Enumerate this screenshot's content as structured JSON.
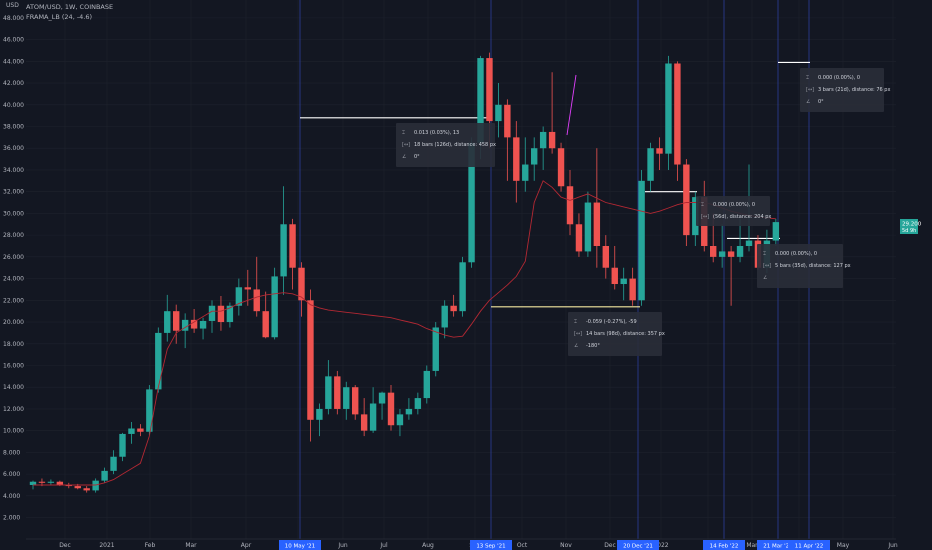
{
  "header": {
    "currency": "USD",
    "symbol": "ATOM/USD, 1W, COINBASE",
    "indicator": "FRAMA_LB (24, -4.6)"
  },
  "price_badge": {
    "price": "29.200",
    "countdown": "5d 9h"
  },
  "colors": {
    "up": "#26a69a",
    "down": "#ef5350",
    "frama": "#b22833",
    "background": "#131722",
    "grid": "#1e222d",
    "vline": "#2a3a8c",
    "label_bg": "#2962ff"
  },
  "chart_data": {
    "type": "candlestick",
    "timeframe": "1W",
    "ylim": [
      0,
      50
    ],
    "yticks": [
      "2.000",
      "4.000",
      "6.000",
      "8.000",
      "10.000",
      "12.000",
      "14.000",
      "16.000",
      "18.000",
      "20.000",
      "22.000",
      "24.000",
      "26.000",
      "28.000",
      "30.000",
      "32.000",
      "34.000",
      "36.000",
      "38.000",
      "40.000",
      "42.000",
      "44.000",
      "46.000",
      "48.000"
    ],
    "month_labels": [
      "Dec",
      "2021",
      "Feb",
      "Mar",
      "Apr",
      "May",
      "Jun",
      "Jul",
      "Aug",
      "Sep",
      "Oct",
      "Nov",
      "Dec",
      "2022",
      "Feb",
      "Mar",
      "Apr",
      "May",
      "Jun"
    ],
    "candles": [
      [
        5.0,
        5.4,
        4.6,
        5.3
      ],
      [
        5.3,
        5.6,
        4.9,
        5.2
      ],
      [
        5.2,
        5.5,
        5.0,
        5.3
      ],
      [
        5.3,
        5.4,
        4.9,
        5.0
      ],
      [
        5.0,
        5.2,
        4.7,
        4.9
      ],
      [
        4.9,
        5.1,
        4.6,
        4.7
      ],
      [
        4.7,
        4.9,
        4.3,
        4.5
      ],
      [
        4.5,
        5.6,
        4.3,
        5.4
      ],
      [
        5.4,
        6.6,
        5.2,
        6.3
      ],
      [
        6.3,
        8.2,
        6.0,
        7.6
      ],
      [
        7.6,
        9.8,
        7.2,
        9.7
      ],
      [
        9.7,
        10.8,
        8.8,
        10.2
      ],
      [
        10.2,
        10.6,
        9.5,
        9.9
      ],
      [
        9.9,
        14.2,
        9.6,
        13.8
      ],
      [
        13.8,
        19.5,
        13.5,
        19.0
      ],
      [
        19.0,
        22.5,
        18.2,
        21.0
      ],
      [
        21.0,
        21.6,
        18.0,
        19.2
      ],
      [
        19.2,
        20.8,
        17.6,
        20.2
      ],
      [
        20.2,
        21.2,
        19.0,
        19.4
      ],
      [
        19.4,
        20.4,
        18.4,
        20.1
      ],
      [
        20.1,
        22.0,
        19.0,
        21.5
      ],
      [
        21.5,
        22.4,
        19.2,
        20.0
      ],
      [
        20.0,
        21.8,
        19.5,
        21.5
      ],
      [
        21.5,
        24.0,
        20.6,
        23.2
      ],
      [
        23.2,
        24.8,
        21.5,
        23.0
      ],
      [
        23.0,
        26.0,
        20.5,
        21.0
      ],
      [
        21.0,
        22.8,
        18.5,
        18.6
      ],
      [
        18.6,
        25.0,
        18.4,
        24.2
      ],
      [
        24.2,
        32.5,
        22.5,
        29.0
      ],
      [
        29.0,
        29.5,
        23.0,
        25.0
      ],
      [
        25.0,
        25.5,
        20.5,
        22.0
      ],
      [
        22.0,
        23.0,
        9.0,
        11.0
      ],
      [
        11.0,
        12.5,
        9.5,
        12.0
      ],
      [
        12.0,
        16.5,
        11.5,
        15.0
      ],
      [
        15.0,
        15.5,
        11.5,
        12.0
      ],
      [
        12.0,
        14.5,
        11.0,
        14.0
      ],
      [
        14.0,
        14.2,
        11.0,
        11.5
      ],
      [
        11.5,
        13.0,
        9.5,
        10.0
      ],
      [
        10.0,
        14.0,
        9.8,
        12.5
      ],
      [
        12.5,
        13.6,
        11.0,
        13.5
      ],
      [
        13.5,
        14.2,
        10.0,
        10.5
      ],
      [
        10.5,
        12.0,
        9.5,
        11.5
      ],
      [
        11.5,
        13.0,
        11.0,
        12.0
      ],
      [
        12.0,
        13.5,
        11.5,
        13.0
      ],
      [
        13.0,
        16.0,
        12.5,
        15.5
      ],
      [
        15.5,
        20.0,
        15.0,
        19.5
      ],
      [
        19.5,
        22.0,
        18.5,
        21.5
      ],
      [
        21.5,
        22.5,
        20.5,
        21.0
      ],
      [
        21.0,
        26.0,
        20.5,
        25.5
      ],
      [
        25.5,
        37.0,
        25.0,
        36.5
      ],
      [
        36.5,
        44.5,
        35.0,
        44.3
      ],
      [
        44.3,
        44.8,
        36.0,
        38.5
      ],
      [
        38.5,
        42.0,
        37.0,
        40.0
      ],
      [
        40.0,
        40.5,
        33.0,
        37.0
      ],
      [
        37.0,
        38.5,
        31.0,
        33.0
      ],
      [
        33.0,
        37.0,
        32.0,
        34.5
      ],
      [
        34.5,
        37.0,
        33.0,
        36.0
      ],
      [
        36.0,
        38.0,
        34.0,
        37.5
      ],
      [
        37.5,
        43.0,
        35.5,
        36.0
      ],
      [
        36.0,
        36.5,
        32.0,
        32.5
      ],
      [
        32.5,
        34.0,
        28.0,
        29.0
      ],
      [
        29.0,
        30.0,
        26.0,
        26.5
      ],
      [
        26.5,
        32.0,
        26.0,
        31.0
      ],
      [
        31.0,
        36.0,
        25.0,
        27.0
      ],
      [
        27.0,
        28.0,
        24.0,
        25.0
      ],
      [
        25.0,
        27.0,
        23.0,
        23.5
      ],
      [
        23.5,
        25.0,
        22.0,
        24.0
      ],
      [
        24.0,
        25.0,
        21.5,
        22.0
      ],
      [
        22.0,
        34.0,
        21.5,
        33.0
      ],
      [
        33.0,
        36.5,
        32.0,
        36.0
      ],
      [
        36.0,
        37.0,
        34.0,
        35.5
      ],
      [
        35.5,
        44.5,
        34.0,
        43.8
      ],
      [
        43.8,
        44.0,
        33.0,
        34.5
      ],
      [
        34.5,
        35.0,
        27.0,
        28.0
      ],
      [
        28.0,
        32.0,
        27.0,
        31.5
      ],
      [
        31.5,
        33.0,
        26.5,
        27.0
      ],
      [
        27.0,
        30.0,
        25.5,
        26.0
      ],
      [
        26.0,
        29.0,
        25.0,
        26.5
      ],
      [
        26.5,
        27.0,
        21.5,
        26.0
      ],
      [
        26.0,
        29.5,
        25.5,
        27.0
      ],
      [
        27.0,
        34.5,
        26.5,
        27.5
      ],
      [
        27.5,
        28.0,
        24.8,
        25.0
      ],
      [
        25.0,
        28.5,
        24.5,
        27.5
      ],
      [
        27.5,
        29.5,
        27.0,
        29.2
      ]
    ],
    "frama": [
      5.0,
      5.0,
      5.0,
      5.0,
      5.0,
      5.0,
      5.0,
      5.0,
      5.2,
      5.5,
      6.0,
      6.5,
      7.0,
      9.5,
      14.0,
      17.5,
      19.0,
      19.5,
      20.0,
      20.5,
      21.0,
      21.0,
      21.3,
      21.7,
      22.0,
      22.3,
      22.5,
      22.6,
      22.7,
      22.6,
      22.3,
      21.6,
      21.3,
      21.1,
      21.0,
      20.9,
      20.8,
      20.7,
      20.6,
      20.5,
      20.4,
      20.2,
      20.0,
      19.8,
      19.4,
      19.1,
      18.8,
      18.6,
      18.7,
      19.8,
      21.0,
      22.0,
      22.7,
      23.4,
      24.2,
      25.6,
      31.0,
      33.0,
      32.4,
      31.5,
      31.2,
      31.5,
      31.8,
      31.4,
      31.0,
      30.8,
      30.6,
      30.4,
      30.2,
      30.0,
      30.2,
      30.5,
      30.8,
      31.0,
      31.0,
      31.0,
      30.8,
      30.5,
      30.2,
      30.0,
      29.8,
      29.7,
      29.6,
      29.5
    ]
  },
  "time_labels": [
    "10 May '21",
    "13 Sep '21",
    "20 Dec '21",
    "14 Feb '22",
    "21 Mar '22",
    "11 Apr '22"
  ],
  "measurements": [
    {
      "price_change": "0.013 (0.03%), 13",
      "bars": "18 bars (126d), distance: 458 px",
      "angle": "0°"
    },
    {
      "price_change": "0.000 (0.00%), 0",
      "bars": "3 bars (21d), distance: 76 px",
      "angle": "0°"
    },
    {
      "price_change": "0.000 (0.00%), 0",
      "bars": "(56d), distance: 204 px",
      "angle": ""
    },
    {
      "price_change": "0.000 (0.00%), 0",
      "bars": "5 bars (35d), distance: 127 px",
      "angle": ""
    },
    {
      "price_change": "-0.059 (-0.27%), -59",
      "bars": "14 bars (98d), distance: 357 px",
      "angle": "-180°"
    }
  ]
}
